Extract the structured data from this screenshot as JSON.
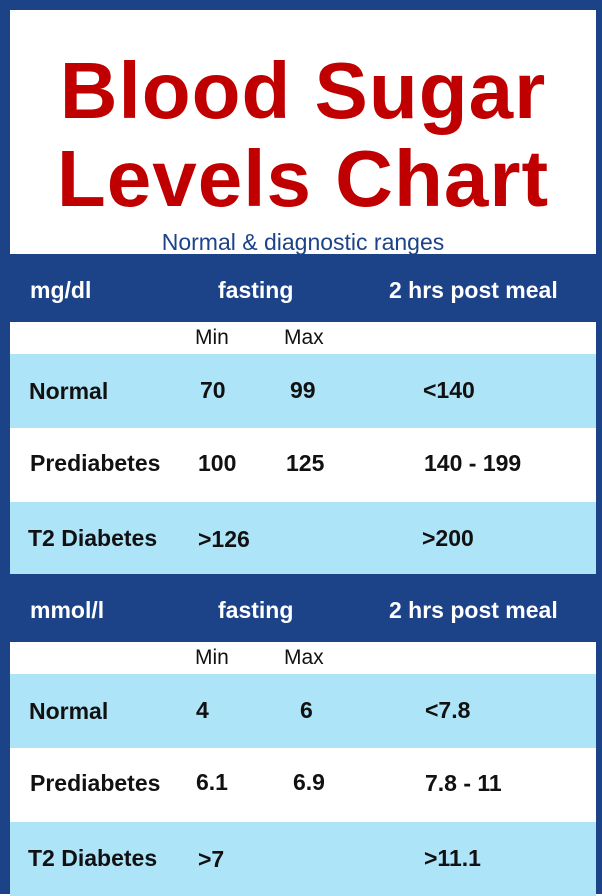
{
  "title": {
    "line1": "Blood Sugar",
    "line2": "Levels Chart",
    "subtitle": "Normal & diagnostic ranges"
  },
  "colors": {
    "title": "#c00000",
    "frame": "#1c4288",
    "highlight_row": "#aee4f8"
  },
  "sections": [
    {
      "unit": "mg/dl",
      "fasting_label": "fasting",
      "post_label": "2 hrs post meal",
      "min_label": "Min",
      "max_label": "Max",
      "rows": [
        {
          "category": "Normal",
          "min": "70",
          "max": "99",
          "post": "<140"
        },
        {
          "category": "Prediabetes",
          "min": "100",
          "max": "125",
          "post": "140 - 199"
        },
        {
          "category": "T2 Diabetes",
          "min": ">126",
          "max": "",
          "post": ">200"
        }
      ]
    },
    {
      "unit": "mmol/l",
      "fasting_label": "fasting",
      "post_label": "2 hrs post meal",
      "min_label": "Min",
      "max_label": "Max",
      "rows": [
        {
          "category": "Normal",
          "min": "4",
          "max": "6",
          "post": "<7.8"
        },
        {
          "category": "Prediabetes",
          "min": "6.1",
          "max": "6.9",
          "post": "7.8 - 11"
        },
        {
          "category": "T2 Diabetes",
          "min": ">7",
          "max": "",
          "post": ">11.1"
        }
      ]
    }
  ]
}
